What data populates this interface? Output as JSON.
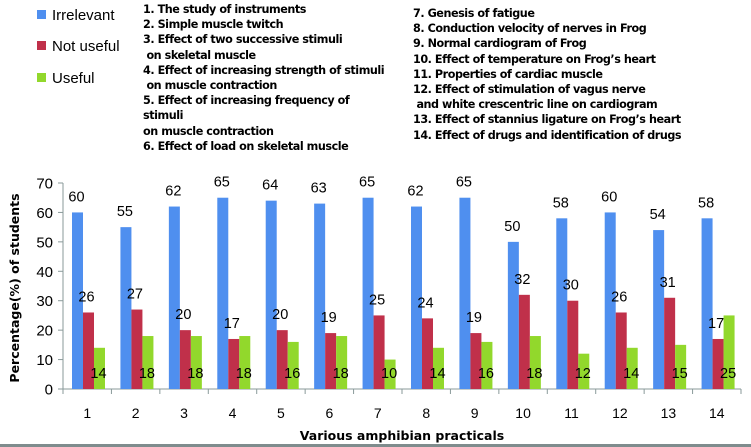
{
  "chart_data": {
    "type": "bar",
    "title": "",
    "xlabel": "Various amphibian practicals",
    "ylabel": "Percentage(%) of students",
    "ylim": [
      0,
      70
    ],
    "yticks": [
      0,
      10,
      20,
      30,
      40,
      50,
      60,
      70
    ],
    "grid": false,
    "legend_position": "top-left",
    "categories": [
      "1",
      "2",
      "3",
      "4",
      "5",
      "6",
      "7",
      "8",
      "9",
      "10",
      "11",
      "12",
      "13",
      "14"
    ],
    "series": [
      {
        "name": "Irrelevant",
        "color": "#4f8fef",
        "values": [
          60,
          55,
          62,
          65,
          64,
          63,
          65,
          62,
          65,
          50,
          58,
          60,
          54,
          58
        ]
      },
      {
        "name": "Not useful",
        "color": "#c0304a",
        "values": [
          26,
          27,
          20,
          17,
          20,
          19,
          25,
          24,
          19,
          32,
          30,
          26,
          31,
          17
        ]
      },
      {
        "name": "Useful",
        "color": "#92d82c",
        "values": [
          14,
          18,
          18,
          18,
          16,
          18,
          10,
          14,
          16,
          18,
          12,
          14,
          15,
          25
        ]
      }
    ],
    "annotations": {
      "left_column": [
        "1. The study of instruments",
        "2. Simple muscle twitch",
        "3. Effect of two successive stimuli",
        " on skeletal muscle",
        "4. Effect of increasing strength of stimuli",
        " on muscle contraction",
        "5. Effect of increasing frequency of",
        "stimuli",
        "on muscle contraction",
        "6. Effect of load on skeletal muscle"
      ],
      "right_column": [
        "7. Genesis of fatigue",
        "8. Conduction velocity of nerves in Frog",
        "9. Normal cardiogram of Frog",
        "10. Effect of temperature on Frog’s heart",
        "11. Properties of cardiac muscle",
        "12. Effect of stimulation of vagus nerve",
        " and white crescentric line on cardiogram",
        "13. Effect of stannius ligature on Frog’s heart",
        "14. Effect of drugs and identification of drugs"
      ]
    }
  },
  "legend": {
    "items": [
      {
        "label": "Irrelevant",
        "color": "#4f8fef"
      },
      {
        "label": "Not useful",
        "color": "#c0304a"
      },
      {
        "label": "Useful",
        "color": "#92d82c"
      }
    ]
  }
}
